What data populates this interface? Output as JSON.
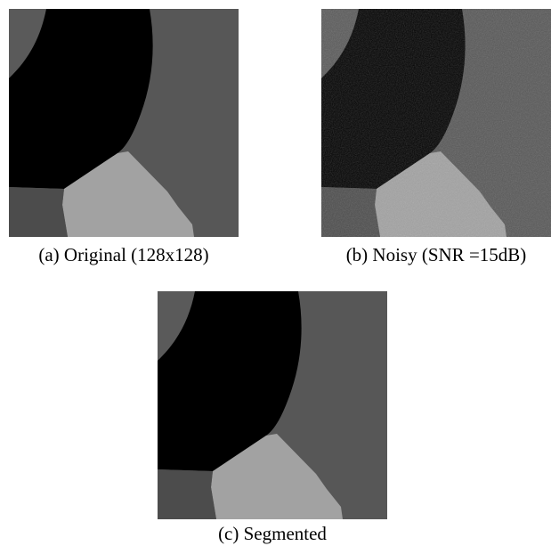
{
  "figure": {
    "panels": [
      {
        "caption": "(a) Original (128x128)"
      },
      {
        "caption": "(b) Noisy (SNR =15dB)"
      },
      {
        "caption": "(c) Segmented"
      }
    ]
  }
}
